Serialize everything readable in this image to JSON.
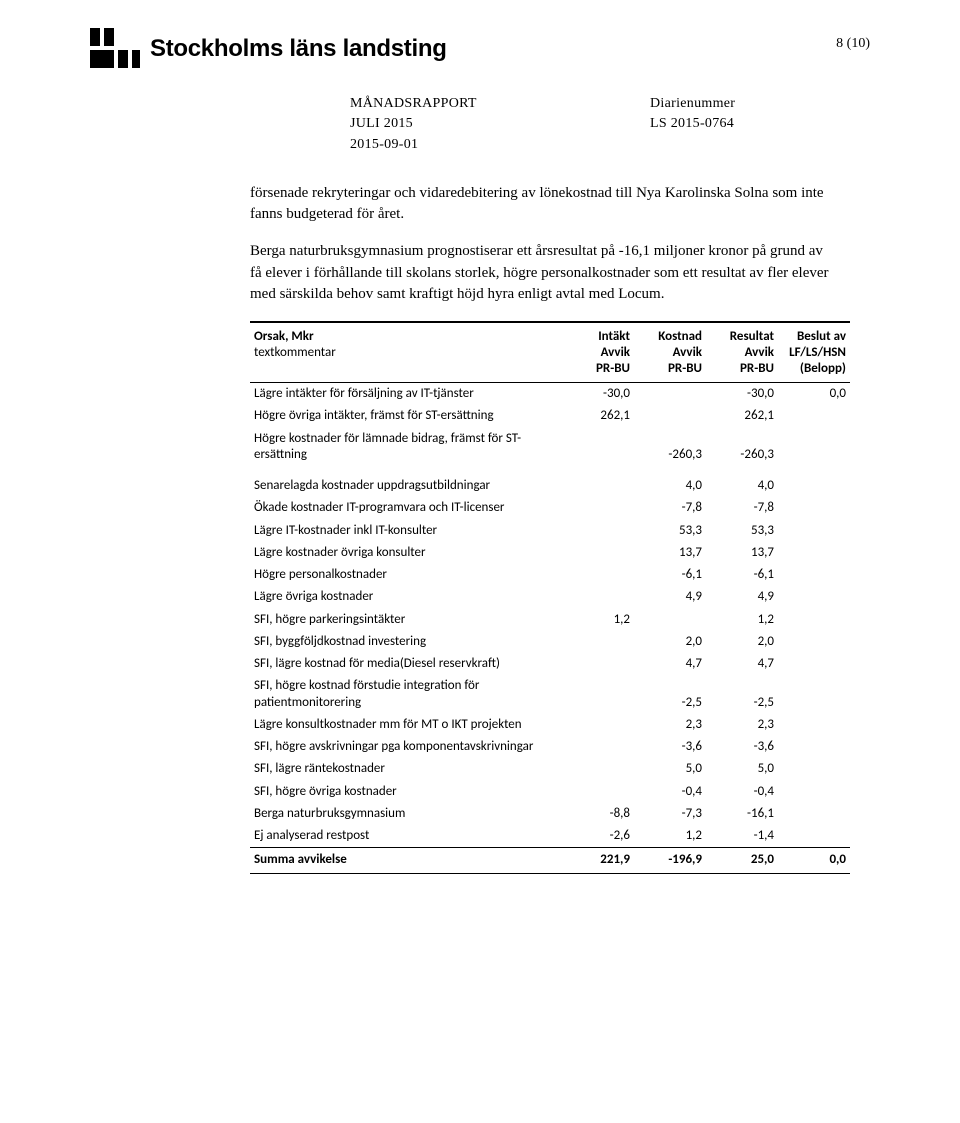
{
  "header": {
    "org_name": "Stockholms läns landsting",
    "page_indicator": "8 (10)"
  },
  "meta": {
    "report_title": "MÅNADSRAPPORT",
    "period": "JULI 2015",
    "date": "2015-09-01",
    "diarie_label": "Diarienummer",
    "diarie_no": "LS 2015-0764"
  },
  "paragraphs": {
    "p1": "försenade rekryteringar och vidaredebitering av lönekostnad till Nya Karolinska Solna som inte fanns budgeterad för året.",
    "p2": "Berga naturbruksgymnasium prognostiserar ett årsresultat på -16,1 miljoner kronor på grund av få elever i förhållande till skolans storlek, högre personalkostnader som ett resultat av fler elever med särskilda behov samt kraftigt höjd hyra enligt avtal med Locum."
  },
  "table": {
    "headers": {
      "label_l1": "Orsak, Mkr",
      "label_l2": "textkommentar",
      "intakt_l1": "Intäkt",
      "intakt_l2": "Avvik",
      "intakt_l3": "PR-BU",
      "kostnad_l1": "Kostnad",
      "kostnad_l2": "Avvik",
      "kostnad_l3": "PR-BU",
      "resultat_l1": "Resultat",
      "resultat_l2": "Avvik",
      "resultat_l3": "PR-BU",
      "beslut_l1": "Beslut av",
      "beslut_l2": "LF/LS/HSN",
      "beslut_l3": "(Belopp)"
    },
    "rows": [
      {
        "label": "Lägre intäkter för försäljning av IT-tjänster",
        "intakt": "-30,0",
        "kostnad": "",
        "resultat": "-30,0",
        "beslut": "0,0",
        "gap": false
      },
      {
        "label": "Högre övriga intäkter, främst för ST-ersättning",
        "intakt": "262,1",
        "kostnad": "",
        "resultat": "262,1",
        "beslut": "",
        "gap": false
      },
      {
        "label": "Högre kostnader för lämnade bidrag, främst för ST-ersättning",
        "intakt": "",
        "kostnad": "-260,3",
        "resultat": "-260,3",
        "beslut": "",
        "gap": false
      },
      {
        "label": "Senarelagda kostnader uppdragsutbildningar",
        "intakt": "",
        "kostnad": "4,0",
        "resultat": "4,0",
        "beslut": "",
        "gap": true
      },
      {
        "label": "Ökade kostnader IT-programvara och IT-licenser",
        "intakt": "",
        "kostnad": "-7,8",
        "resultat": "-7,8",
        "beslut": "",
        "gap": false
      },
      {
        "label": "Lägre IT-kostnader inkl IT-konsulter",
        "intakt": "",
        "kostnad": "53,3",
        "resultat": "53,3",
        "beslut": "",
        "gap": false
      },
      {
        "label": "Lägre kostnader övriga konsulter",
        "intakt": "",
        "kostnad": "13,7",
        "resultat": "13,7",
        "beslut": "",
        "gap": false
      },
      {
        "label": "Högre personalkostnader",
        "intakt": "",
        "kostnad": "-6,1",
        "resultat": "-6,1",
        "beslut": "",
        "gap": false
      },
      {
        "label": "Lägre övriga kostnader",
        "intakt": "",
        "kostnad": "4,9",
        "resultat": "4,9",
        "beslut": "",
        "gap": false
      },
      {
        "label": "SFI, högre parkeringsintäkter",
        "intakt": "1,2",
        "kostnad": "",
        "resultat": "1,2",
        "beslut": "",
        "gap": false
      },
      {
        "label": "SFI, byggföljdkostnad investering",
        "intakt": "",
        "kostnad": "2,0",
        "resultat": "2,0",
        "beslut": "",
        "gap": false
      },
      {
        "label": "SFI, lägre kostnad för media(Diesel reservkraft)",
        "intakt": "",
        "kostnad": "4,7",
        "resultat": "4,7",
        "beslut": "",
        "gap": false
      },
      {
        "label": "SFI, högre kostnad förstudie integration för patientmonitorering",
        "intakt": "",
        "kostnad": "-2,5",
        "resultat": "-2,5",
        "beslut": "",
        "gap": false
      },
      {
        "label": "Lägre konsultkostnader mm för MT o IKT projekten",
        "intakt": "",
        "kostnad": "2,3",
        "resultat": "2,3",
        "beslut": "",
        "gap": false
      },
      {
        "label": "SFI, högre avskrivningar pga komponentavskrivningar",
        "intakt": "",
        "kostnad": "-3,6",
        "resultat": "-3,6",
        "beslut": "",
        "gap": false
      },
      {
        "label": "SFI, lägre räntekostnader",
        "intakt": "",
        "kostnad": "5,0",
        "resultat": "5,0",
        "beslut": "",
        "gap": false
      },
      {
        "label": "SFI, högre övriga kostnader",
        "intakt": "",
        "kostnad": "-0,4",
        "resultat": "-0,4",
        "beslut": "",
        "gap": false
      },
      {
        "label": "Berga naturbruksgymnasium",
        "intakt": "-8,8",
        "kostnad": "-7,3",
        "resultat": "-16,1",
        "beslut": "",
        "gap": false
      },
      {
        "label": "Ej analyserad restpost",
        "intakt": "-2,6",
        "kostnad": "1,2",
        "resultat": "-1,4",
        "beslut": "",
        "gap": false
      }
    ],
    "summa": {
      "label": "Summa avvikelse",
      "intakt": "221,9",
      "kostnad": "-196,9",
      "resultat": "25,0",
      "beslut": "0,0"
    }
  },
  "colors": {
    "text": "#000000",
    "rule": "#000000",
    "bg": "#ffffff"
  }
}
